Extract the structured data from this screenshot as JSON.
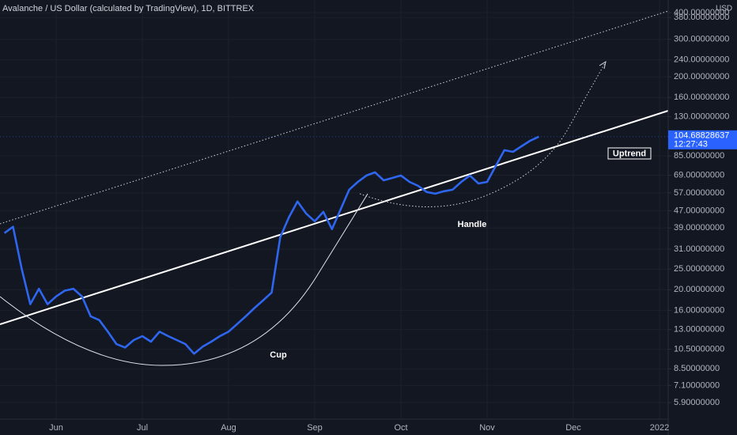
{
  "chart_data": {
    "type": "line",
    "title": "Avalanche / US Dollar (calculated by TradingView), 1D, BITTREX",
    "y_unit": "USD",
    "countdown": "12:27:43",
    "annotations": [
      "Cup",
      "Handle",
      "Uptrend"
    ],
    "color": "#2f66f0",
    "log_scale": true,
    "grid": true,
    "categories": [
      null,
      null,
      null,
      null,
      null,
      null,
      "Jun",
      null,
      null,
      null,
      null,
      null,
      null,
      null,
      null,
      null,
      "Jul",
      null,
      null,
      null,
      null,
      null,
      null,
      null,
      null,
      null,
      "Aug",
      null,
      null,
      null,
      null,
      null,
      null,
      null,
      null,
      null,
      "Sep",
      null,
      null,
      null,
      null,
      null,
      null,
      null,
      null,
      null,
      "Oct",
      null,
      null,
      null,
      null,
      null,
      null,
      null,
      null,
      null,
      "Nov",
      null,
      null,
      null,
      null,
      null,
      null,
      null,
      null,
      null,
      "Dec",
      null,
      null,
      null,
      null,
      null,
      null,
      null,
      null,
      null,
      "2022"
    ],
    "values": [
      36.9,
      39.5,
      25.1,
      17.1,
      20.2,
      17.1,
      18.6,
      19.8,
      20.2,
      18.6,
      15.0,
      14.4,
      12.7,
      11.1,
      10.7,
      11.6,
      12.1,
      11.4,
      12.7,
      12.1,
      11.6,
      11.1,
      10.0,
      10.8,
      11.4,
      12.1,
      12.7,
      13.8,
      15.0,
      16.4,
      17.8,
      19.4,
      35.3,
      43.7,
      51.9,
      45.6,
      41.9,
      46.4,
      38.5,
      47.6,
      59.0,
      64.2,
      68.8,
      71.2,
      65.3,
      67.0,
      68.8,
      64.2,
      61.5,
      57.5,
      56.5,
      58.0,
      59.0,
      64.2,
      68.8,
      63.1,
      64.2,
      76.2,
      90.4,
      88.8,
      94.4,
      100.2,
      104.68828637,
      null,
      null,
      null,
      null,
      null,
      null,
      null,
      null,
      null,
      null,
      null,
      null,
      null,
      null
    ],
    "ylim": [
      4.93,
      459
    ],
    "yticks": [
      {
        "value": 400,
        "label": "400.00000000"
      },
      {
        "value": 380,
        "label": "380.00000000"
      },
      {
        "value": 300,
        "label": "300.00000000"
      },
      {
        "value": 240,
        "label": "240.00000000"
      },
      {
        "value": 200,
        "label": "200.00000000"
      },
      {
        "value": 160,
        "label": "160.00000000"
      },
      {
        "value": 130,
        "label": "130.00000000"
      },
      {
        "value": 85,
        "label": "85.00000000"
      },
      {
        "value": 69,
        "label": "69.00000000"
      },
      {
        "value": 57,
        "label": "57.00000000"
      },
      {
        "value": 47,
        "label": "47.00000000"
      },
      {
        "value": 39,
        "label": "39.00000000"
      },
      {
        "value": 31,
        "label": "31.00000000"
      },
      {
        "value": 25,
        "label": "25.00000000"
      },
      {
        "value": 20,
        "label": "20.00000000"
      },
      {
        "value": 16,
        "label": "16.00000000"
      },
      {
        "value": 13,
        "label": "13.00000000"
      },
      {
        "value": 10.5,
        "label": "10.50000000"
      },
      {
        "value": 8.5,
        "label": "8.50000000"
      },
      {
        "value": 7.1,
        "label": "7.10000000"
      },
      {
        "value": 5.9,
        "label": "5.90000000"
      }
    ]
  }
}
